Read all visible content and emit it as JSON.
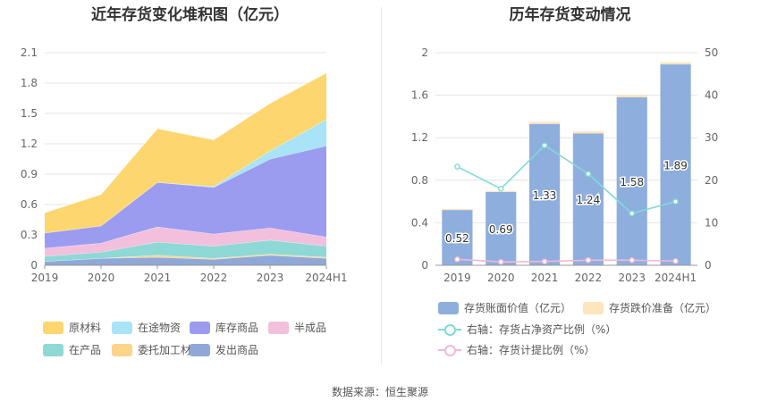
{
  "left": {
    "title": "近年存货变化堆积图（亿元）"
  },
  "right": {
    "title": "历年存货变动情况"
  },
  "source": "数据来源：恒生聚源",
  "chart_data": [
    {
      "type": "area",
      "stacked": true,
      "title": "近年存货变化堆积图（亿元）",
      "categories": [
        "2019",
        "2020",
        "2021",
        "2022",
        "2023",
        "2024H1"
      ],
      "ylim": [
        0,
        2.1
      ],
      "yticks": [
        "0",
        "0.3",
        "0.6",
        "0.9",
        "1.2",
        "1.5",
        "1.8",
        "2.1"
      ],
      "grid": true,
      "legend_position": "bottom",
      "series": [
        {
          "name": "发出商品",
          "color": "#8fa8d8",
          "values": [
            0.04,
            0.07,
            0.08,
            0.06,
            0.1,
            0.07
          ]
        },
        {
          "name": "委托加工材料",
          "color": "#fdd48a",
          "values": [
            0.0,
            0.0,
            0.02,
            0.01,
            0.01,
            0.01
          ]
        },
        {
          "name": "在产品",
          "color": "#8ed8d6",
          "values": [
            0.05,
            0.06,
            0.13,
            0.12,
            0.14,
            0.11
          ]
        },
        {
          "name": "半成品",
          "color": "#f2bfdd",
          "values": [
            0.08,
            0.09,
            0.15,
            0.12,
            0.12,
            0.09
          ]
        },
        {
          "name": "库存商品",
          "color": "#9b9cf0",
          "values": [
            0.15,
            0.17,
            0.44,
            0.46,
            0.68,
            0.9
          ]
        },
        {
          "name": "在途物资",
          "color": "#a8e3f7",
          "values": [
            0.0,
            0.0,
            0.0,
            0.01,
            0.08,
            0.26
          ]
        },
        {
          "name": "原材料",
          "color": "#fdd670",
          "values": [
            0.2,
            0.31,
            0.53,
            0.46,
            0.47,
            0.46
          ]
        }
      ],
      "legend_order": [
        "原材料",
        "在途物资",
        "库存商品",
        "半成品",
        "在产品",
        "委托加工材料",
        "发出商品"
      ]
    },
    {
      "type": "bar",
      "title": "历年存货变动情况",
      "categories": [
        "2019",
        "2020",
        "2021",
        "2022",
        "2023",
        "2024H1"
      ],
      "ylim": [
        0,
        2
      ],
      "yticks": [
        "0",
        "0.4",
        "0.8",
        "1.2",
        "1.6",
        "2"
      ],
      "y2lim": [
        0,
        50
      ],
      "y2ticks": [
        "0",
        "10",
        "20",
        "30",
        "40",
        "50"
      ],
      "grid": true,
      "legend_position": "bottom",
      "series": [
        {
          "name": "存货账面价值（亿元）",
          "type": "bar",
          "stack": "inv",
          "color": "#8eaedd",
          "values": [
            0.52,
            0.69,
            1.33,
            1.24,
            1.58,
            1.89
          ],
          "labels": [
            "0.52",
            "0.69",
            "1.33",
            "1.24",
            "1.58",
            "1.89"
          ]
        },
        {
          "name": "存货跌价准备（亿元）",
          "type": "bar",
          "stack": "inv",
          "color": "#fde5bd",
          "values": [
            0.01,
            0.01,
            0.02,
            0.02,
            0.02,
            0.02
          ]
        },
        {
          "name": "右轴：存货占净资产比例（%）",
          "type": "line",
          "axis": "right",
          "color": "#82d9d8",
          "values": [
            23.2,
            18.0,
            28.2,
            21.5,
            12.2,
            15.0
          ]
        },
        {
          "name": "右轴：存货计提比例（%）",
          "type": "line",
          "axis": "right",
          "color": "#f2b8d8",
          "values": [
            1.4,
            0.8,
            0.9,
            1.2,
            1.2,
            1.0
          ]
        }
      ]
    }
  ]
}
